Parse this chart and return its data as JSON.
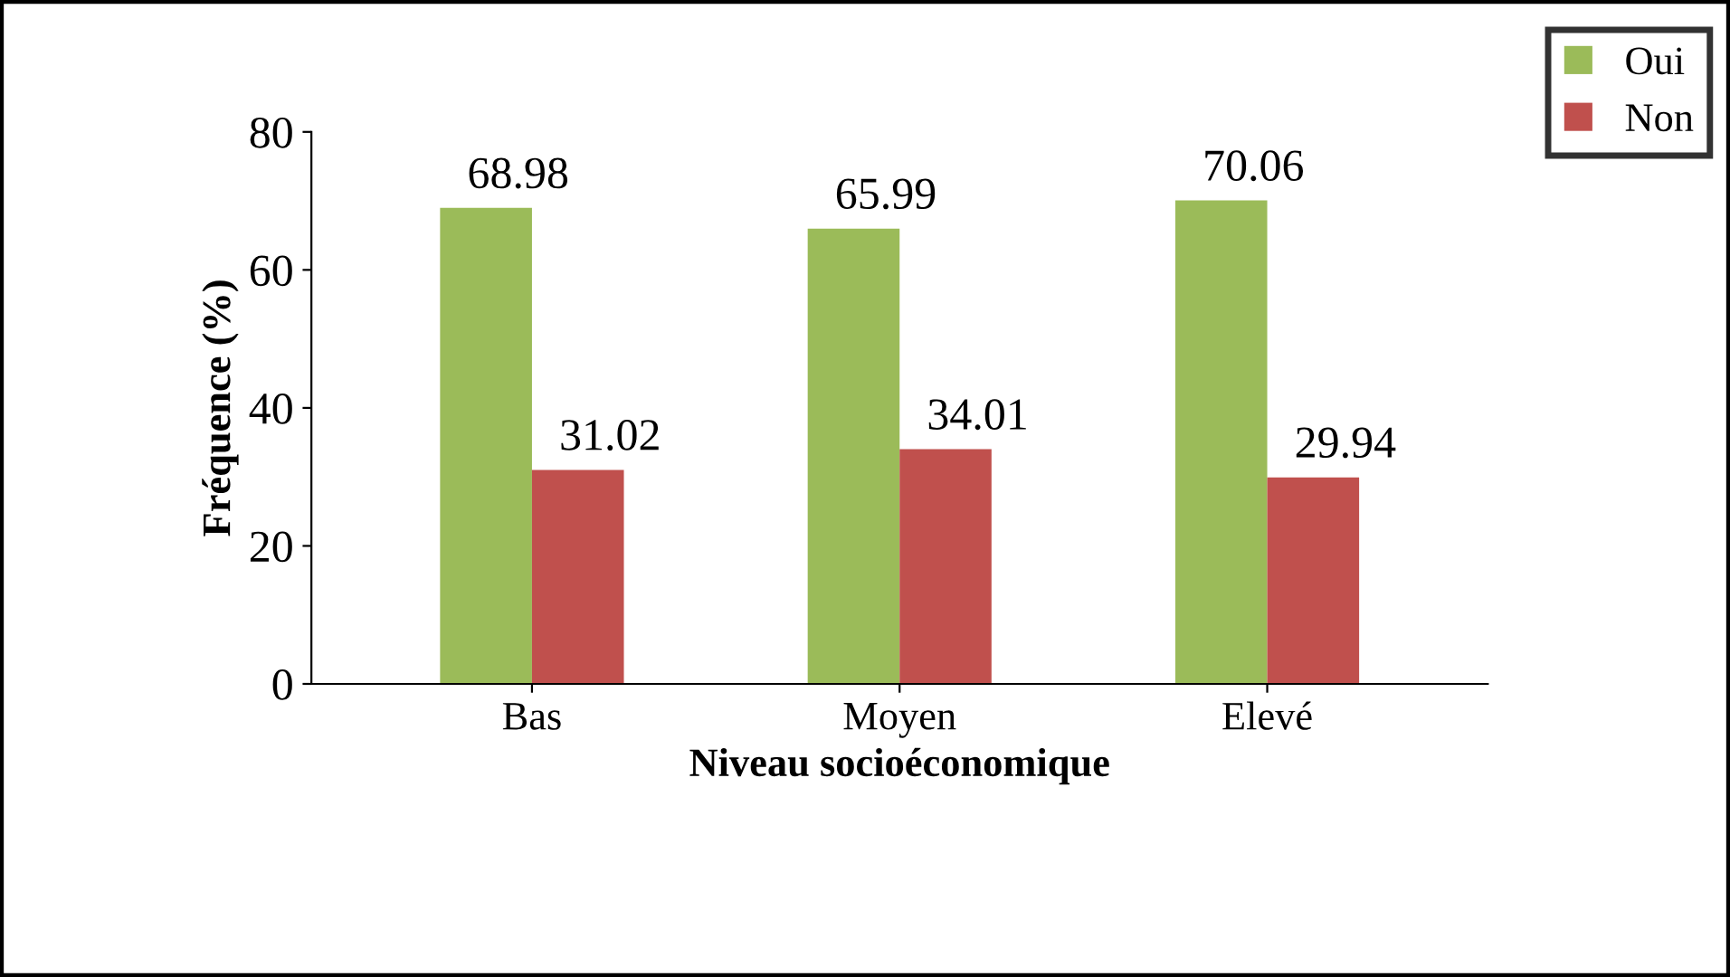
{
  "chart_data": {
    "type": "bar",
    "xlabel": "Niveau socioéconomique",
    "ylabel": "Fréquence (%)",
    "categories": [
      "Bas",
      "Moyen",
      "Elevé"
    ],
    "series": [
      {
        "name": "Oui",
        "color": "#9bbb59",
        "values": [
          68.98,
          65.99,
          70.06
        ]
      },
      {
        "name": "Non",
        "color": "#c0504d",
        "values": [
          31.02,
          34.01,
          29.94
        ]
      }
    ],
    "ylim": [
      0,
      80
    ],
    "yticks": [
      0,
      20,
      40,
      60,
      80
    ],
    "data_labels": true,
    "legend": "top right",
    "grid": false
  }
}
